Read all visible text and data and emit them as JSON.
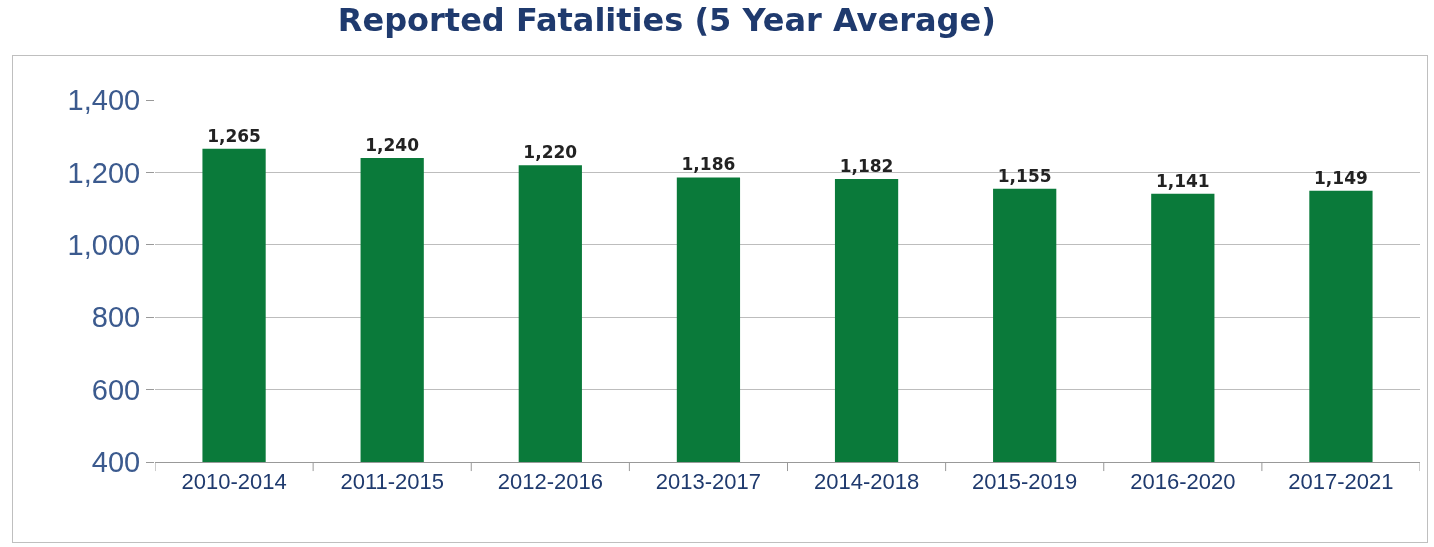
{
  "chart_data": {
    "type": "bar",
    "title": "Reported Fatalities (5 Year Average)",
    "categories": [
      "2010-2014",
      "2011-2015",
      "2012-2016",
      "2013-2017",
      "2014-2018",
      "2015-2019",
      "2016-2020",
      "2017-2021"
    ],
    "values": [
      1265,
      1240,
      1220,
      1186,
      1182,
      1155,
      1141,
      1149
    ],
    "color": "#0a7a3a",
    "ylim": [
      400,
      1400
    ],
    "yticks": [
      {
        "value": 400,
        "label": "400"
      },
      {
        "value": 600,
        "label": "600"
      },
      {
        "value": 800,
        "label": "800"
      },
      {
        "value": 1000,
        "label": "1,000"
      },
      {
        "value": 1200,
        "label": "1,200"
      },
      {
        "value": 1400,
        "label": "1,400"
      }
    ],
    "value_labels": [
      "1,265",
      "1,240",
      "1,220",
      "1,186",
      "1,182",
      "1,155",
      "1,141",
      "1,149"
    ],
    "grid": "y"
  }
}
